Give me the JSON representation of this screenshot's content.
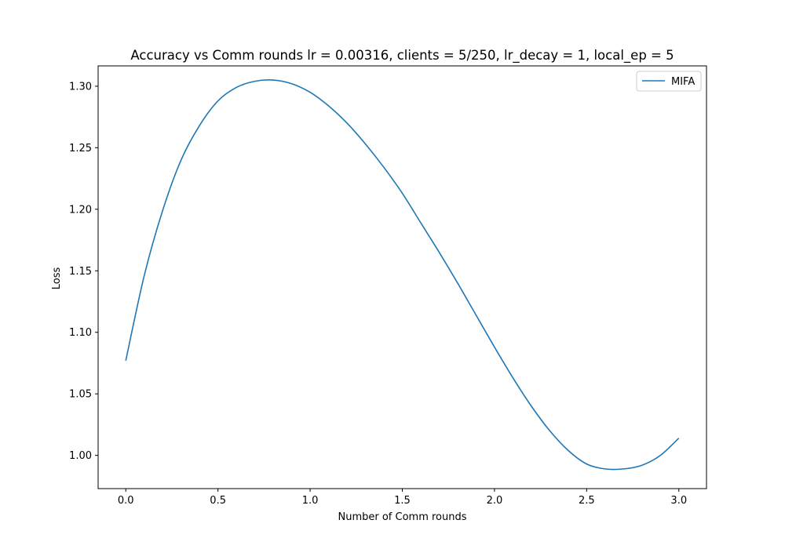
{
  "chart_data": {
    "type": "line",
    "title": "Accuracy vs Comm rounds lr = 0.00316, clients = 5/250, lr_decay = 1, local_ep = 5",
    "xlabel": "Number of Comm rounds",
    "ylabel": "Loss",
    "xlim": [
      -0.15,
      3.15
    ],
    "ylim": [
      0.973,
      1.3165
    ],
    "xticks": [
      0.0,
      0.5,
      1.0,
      1.5,
      2.0,
      2.5,
      3.0
    ],
    "xtick_labels": [
      "0.0",
      "0.5",
      "1.0",
      "1.5",
      "2.0",
      "2.5",
      "3.0"
    ],
    "yticks": [
      1.0,
      1.05,
      1.1,
      1.15,
      1.2,
      1.25,
      1.3
    ],
    "ytick_labels": [
      "1.00",
      "1.05",
      "1.10",
      "1.15",
      "1.20",
      "1.25",
      "1.30"
    ],
    "grid": false,
    "legend_position": "top-right",
    "series": [
      {
        "name": "MIFA",
        "color": "#1f77b4",
        "x": [
          0.0,
          0.1,
          0.2,
          0.3,
          0.4,
          0.5,
          0.6,
          0.7,
          0.8,
          0.9,
          1.0,
          1.1,
          1.2,
          1.3,
          1.4,
          1.5,
          1.6,
          1.7,
          1.8,
          1.9,
          2.0,
          2.1,
          2.2,
          2.3,
          2.4,
          2.5,
          2.6,
          2.7,
          2.8,
          2.9,
          3.0
        ],
        "y": [
          1.077,
          1.146,
          1.199,
          1.24,
          1.268,
          1.288,
          1.299,
          1.304,
          1.305,
          1.302,
          1.295,
          1.284,
          1.27,
          1.253,
          1.234,
          1.213,
          1.189,
          1.165,
          1.14,
          1.114,
          1.088,
          1.063,
          1.04,
          1.02,
          1.004,
          0.993,
          0.989,
          0.989,
          0.992,
          1.0,
          1.014
        ]
      }
    ]
  }
}
